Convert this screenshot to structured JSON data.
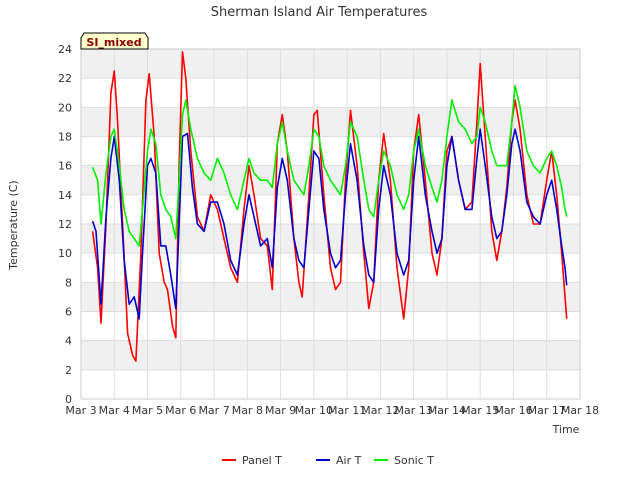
{
  "chart_data": {
    "type": "line",
    "title": "Sherman Island Air Temperatures",
    "badge": "SI_mixed",
    "xlabel": "Time",
    "ylabel": "Temperature (C)",
    "xlim": [
      3,
      18
    ],
    "ylim": [
      0,
      24
    ],
    "x_ticks": [
      {
        "value": 3,
        "label": "Mar 3"
      },
      {
        "value": 4,
        "label": "Mar 4"
      },
      {
        "value": 5,
        "label": "Mar 5"
      },
      {
        "value": 6,
        "label": "Mar 6"
      },
      {
        "value": 7,
        "label": "Mar 7"
      },
      {
        "value": 8,
        "label": "Mar 8"
      },
      {
        "value": 9,
        "label": "Mar 9"
      },
      {
        "value": 10,
        "label": "Mar 10"
      },
      {
        "value": 11,
        "label": "Mar 11"
      },
      {
        "value": 12,
        "label": "Mar 12"
      },
      {
        "value": 13,
        "label": "Mar 13"
      },
      {
        "value": 14,
        "label": "Mar 14"
      },
      {
        "value": 15,
        "label": "Mar 15"
      },
      {
        "value": 16,
        "label": "Mar 16"
      },
      {
        "value": 17,
        "label": "Mar 17"
      },
      {
        "value": 18,
        "label": "Mar 18"
      }
    ],
    "y_ticks": [
      0,
      2,
      4,
      6,
      8,
      10,
      12,
      14,
      16,
      18,
      20,
      22,
      24
    ],
    "grid": true,
    "alternating_bands": true,
    "legend_position": "bottom-center",
    "series": [
      {
        "name": "Panel T",
        "color": "#ff0000",
        "points": [
          [
            3.35,
            11.5
          ],
          [
            3.5,
            9.0
          ],
          [
            3.6,
            5.2
          ],
          [
            3.75,
            12.0
          ],
          [
            3.9,
            21.0
          ],
          [
            4.0,
            22.5
          ],
          [
            4.1,
            19.0
          ],
          [
            4.25,
            12.0
          ],
          [
            4.4,
            4.5
          ],
          [
            4.55,
            3.0
          ],
          [
            4.65,
            2.6
          ],
          [
            4.8,
            10.0
          ],
          [
            4.95,
            20.5
          ],
          [
            5.05,
            22.3
          ],
          [
            5.2,
            18.0
          ],
          [
            5.35,
            10.0
          ],
          [
            5.5,
            8.0
          ],
          [
            5.6,
            7.5
          ],
          [
            5.75,
            5.0
          ],
          [
            5.85,
            4.2
          ],
          [
            5.95,
            16.0
          ],
          [
            6.05,
            23.8
          ],
          [
            6.15,
            22.0
          ],
          [
            6.3,
            17.0
          ],
          [
            6.5,
            12.5
          ],
          [
            6.7,
            11.5
          ],
          [
            6.9,
            14.0
          ],
          [
            7.1,
            13.0
          ],
          [
            7.3,
            11.0
          ],
          [
            7.5,
            9.0
          ],
          [
            7.7,
            8.0
          ],
          [
            7.9,
            13.0
          ],
          [
            8.05,
            16.0
          ],
          [
            8.2,
            14.0
          ],
          [
            8.4,
            11.0
          ],
          [
            8.6,
            10.5
          ],
          [
            8.75,
            7.5
          ],
          [
            8.9,
            17.5
          ],
          [
            9.05,
            19.5
          ],
          [
            9.2,
            17.0
          ],
          [
            9.4,
            11.0
          ],
          [
            9.55,
            8.0
          ],
          [
            9.65,
            7.0
          ],
          [
            9.85,
            14.0
          ],
          [
            10.0,
            19.5
          ],
          [
            10.1,
            19.8
          ],
          [
            10.3,
            14.0
          ],
          [
            10.5,
            9.0
          ],
          [
            10.65,
            7.5
          ],
          [
            10.8,
            8.0
          ],
          [
            10.95,
            15.0
          ],
          [
            11.1,
            19.8
          ],
          [
            11.3,
            16.0
          ],
          [
            11.5,
            10.0
          ],
          [
            11.65,
            6.2
          ],
          [
            11.8,
            8.0
          ],
          [
            11.95,
            15.0
          ],
          [
            12.1,
            18.2
          ],
          [
            12.3,
            15.0
          ],
          [
            12.5,
            9.0
          ],
          [
            12.7,
            5.5
          ],
          [
            12.85,
            9.0
          ],
          [
            13.0,
            17.0
          ],
          [
            13.15,
            19.5
          ],
          [
            13.35,
            15.0
          ],
          [
            13.55,
            10.0
          ],
          [
            13.7,
            8.5
          ],
          [
            13.85,
            11.0
          ],
          [
            14.0,
            17.0
          ],
          [
            14.15,
            18.0
          ],
          [
            14.35,
            15.0
          ],
          [
            14.55,
            13.0
          ],
          [
            14.75,
            13.5
          ],
          [
            14.9,
            19.0
          ],
          [
            15.0,
            23.0
          ],
          [
            15.15,
            18.0
          ],
          [
            15.35,
            11.5
          ],
          [
            15.5,
            9.5
          ],
          [
            15.65,
            11.5
          ],
          [
            15.8,
            14.5
          ],
          [
            15.95,
            19.0
          ],
          [
            16.05,
            20.5
          ],
          [
            16.2,
            18.5
          ],
          [
            16.4,
            14.0
          ],
          [
            16.6,
            12.0
          ],
          [
            16.8,
            12.0
          ],
          [
            17.0,
            15.0
          ],
          [
            17.15,
            17.0
          ],
          [
            17.3,
            14.0
          ],
          [
            17.45,
            10.0
          ],
          [
            17.55,
            7.0
          ],
          [
            17.6,
            5.5
          ]
        ]
      },
      {
        "name": "Air T",
        "color": "#0000cc",
        "points": [
          [
            3.35,
            12.2
          ],
          [
            3.45,
            11.5
          ],
          [
            3.6,
            6.5
          ],
          [
            3.75,
            12.5
          ],
          [
            3.9,
            16.5
          ],
          [
            4.0,
            18.0
          ],
          [
            4.15,
            15.0
          ],
          [
            4.3,
            9.5
          ],
          [
            4.45,
            6.5
          ],
          [
            4.6,
            7.0
          ],
          [
            4.75,
            5.5
          ],
          [
            4.85,
            10.0
          ],
          [
            5.0,
            16.0
          ],
          [
            5.1,
            16.5
          ],
          [
            5.25,
            15.5
          ],
          [
            5.4,
            10.5
          ],
          [
            5.55,
            10.5
          ],
          [
            5.7,
            8.5
          ],
          [
            5.85,
            6.2
          ],
          [
            5.95,
            12.0
          ],
          [
            6.05,
            18.0
          ],
          [
            6.2,
            18.2
          ],
          [
            6.35,
            14.5
          ],
          [
            6.5,
            12.0
          ],
          [
            6.7,
            11.5
          ],
          [
            6.9,
            13.5
          ],
          [
            7.1,
            13.5
          ],
          [
            7.3,
            12.0
          ],
          [
            7.5,
            9.5
          ],
          [
            7.7,
            8.5
          ],
          [
            7.9,
            12.0
          ],
          [
            8.05,
            14.0
          ],
          [
            8.2,
            12.5
          ],
          [
            8.4,
            10.5
          ],
          [
            8.6,
            11.0
          ],
          [
            8.75,
            9.0
          ],
          [
            8.9,
            14.5
          ],
          [
            9.05,
            16.5
          ],
          [
            9.2,
            15.0
          ],
          [
            9.4,
            11.0
          ],
          [
            9.55,
            9.5
          ],
          [
            9.7,
            9.0
          ],
          [
            9.85,
            13.0
          ],
          [
            10.0,
            17.0
          ],
          [
            10.15,
            16.5
          ],
          [
            10.3,
            13.0
          ],
          [
            10.5,
            10.0
          ],
          [
            10.65,
            9.0
          ],
          [
            10.8,
            9.5
          ],
          [
            10.95,
            14.0
          ],
          [
            11.1,
            17.5
          ],
          [
            11.3,
            15.0
          ],
          [
            11.5,
            10.5
          ],
          [
            11.65,
            8.5
          ],
          [
            11.8,
            8.0
          ],
          [
            11.95,
            13.0
          ],
          [
            12.1,
            16.0
          ],
          [
            12.3,
            14.0
          ],
          [
            12.5,
            10.0
          ],
          [
            12.7,
            8.5
          ],
          [
            12.85,
            9.5
          ],
          [
            13.0,
            15.0
          ],
          [
            13.15,
            18.0
          ],
          [
            13.35,
            14.0
          ],
          [
            13.55,
            11.5
          ],
          [
            13.7,
            10.0
          ],
          [
            13.85,
            11.0
          ],
          [
            14.0,
            16.0
          ],
          [
            14.15,
            18.0
          ],
          [
            14.35,
            15.0
          ],
          [
            14.55,
            13.0
          ],
          [
            14.75,
            13.0
          ],
          [
            14.9,
            16.5
          ],
          [
            15.0,
            18.5
          ],
          [
            15.15,
            16.0
          ],
          [
            15.35,
            12.5
          ],
          [
            15.5,
            11.0
          ],
          [
            15.65,
            11.5
          ],
          [
            15.8,
            14.0
          ],
          [
            15.95,
            17.5
          ],
          [
            16.05,
            18.5
          ],
          [
            16.2,
            17.0
          ],
          [
            16.4,
            13.5
          ],
          [
            16.6,
            12.5
          ],
          [
            16.8,
            12.0
          ],
          [
            17.0,
            14.0
          ],
          [
            17.15,
            15.0
          ],
          [
            17.3,
            13.0
          ],
          [
            17.45,
            10.5
          ],
          [
            17.55,
            9.0
          ],
          [
            17.6,
            7.8
          ]
        ]
      },
      {
        "name": "Sonic T",
        "color": "#00ee00",
        "points": [
          [
            3.35,
            15.9
          ],
          [
            3.5,
            15.0
          ],
          [
            3.6,
            12.0
          ],
          [
            3.75,
            15.5
          ],
          [
            3.9,
            18.0
          ],
          [
            4.0,
            18.5
          ],
          [
            4.15,
            16.0
          ],
          [
            4.3,
            13.0
          ],
          [
            4.45,
            11.5
          ],
          [
            4.6,
            11.0
          ],
          [
            4.75,
            10.5
          ],
          [
            4.85,
            13.0
          ],
          [
            5.0,
            17.0
          ],
          [
            5.1,
            18.5
          ],
          [
            5.25,
            17.5
          ],
          [
            5.4,
            14.0
          ],
          [
            5.55,
            13.0
          ],
          [
            5.7,
            12.5
          ],
          [
            5.85,
            11.0
          ],
          [
            5.95,
            15.0
          ],
          [
            6.05,
            19.5
          ],
          [
            6.15,
            20.5
          ],
          [
            6.3,
            18.5
          ],
          [
            6.5,
            16.5
          ],
          [
            6.7,
            15.5
          ],
          [
            6.9,
            15.0
          ],
          [
            7.1,
            16.5
          ],
          [
            7.3,
            15.5
          ],
          [
            7.5,
            14.0
          ],
          [
            7.7,
            13.0
          ],
          [
            7.9,
            15.0
          ],
          [
            8.05,
            16.5
          ],
          [
            8.2,
            15.5
          ],
          [
            8.4,
            15.0
          ],
          [
            8.6,
            15.0
          ],
          [
            8.75,
            14.5
          ],
          [
            8.9,
            17.5
          ],
          [
            9.05,
            19.0
          ],
          [
            9.2,
            17.0
          ],
          [
            9.4,
            15.0
          ],
          [
            9.55,
            14.5
          ],
          [
            9.7,
            14.0
          ],
          [
            9.85,
            16.0
          ],
          [
            10.0,
            18.5
          ],
          [
            10.15,
            18.0
          ],
          [
            10.3,
            16.0
          ],
          [
            10.5,
            15.0
          ],
          [
            10.65,
            14.5
          ],
          [
            10.8,
            14.0
          ],
          [
            10.95,
            16.0
          ],
          [
            11.1,
            19.0
          ],
          [
            11.3,
            18.0
          ],
          [
            11.5,
            15.0
          ],
          [
            11.65,
            13.0
          ],
          [
            11.8,
            12.5
          ],
          [
            11.95,
            15.0
          ],
          [
            12.1,
            17.0
          ],
          [
            12.3,
            16.0
          ],
          [
            12.5,
            14.0
          ],
          [
            12.7,
            13.0
          ],
          [
            12.85,
            14.0
          ],
          [
            13.0,
            17.0
          ],
          [
            13.15,
            18.5
          ],
          [
            13.35,
            16.0
          ],
          [
            13.55,
            14.5
          ],
          [
            13.7,
            13.5
          ],
          [
            13.85,
            15.0
          ],
          [
            14.0,
            18.0
          ],
          [
            14.15,
            20.5
          ],
          [
            14.35,
            19.0
          ],
          [
            14.55,
            18.5
          ],
          [
            14.75,
            17.5
          ],
          [
            14.9,
            18.0
          ],
          [
            15.0,
            20.0
          ],
          [
            15.15,
            19.0
          ],
          [
            15.35,
            17.0
          ],
          [
            15.5,
            16.0
          ],
          [
            15.65,
            16.0
          ],
          [
            15.8,
            16.0
          ],
          [
            15.95,
            19.0
          ],
          [
            16.05,
            21.5
          ],
          [
            16.2,
            20.0
          ],
          [
            16.4,
            17.0
          ],
          [
            16.6,
            16.0
          ],
          [
            16.8,
            15.5
          ],
          [
            17.0,
            16.5
          ],
          [
            17.15,
            17.0
          ],
          [
            17.3,
            16.0
          ],
          [
            17.45,
            14.5
          ],
          [
            17.55,
            13.0
          ],
          [
            17.6,
            12.5
          ]
        ]
      }
    ]
  }
}
